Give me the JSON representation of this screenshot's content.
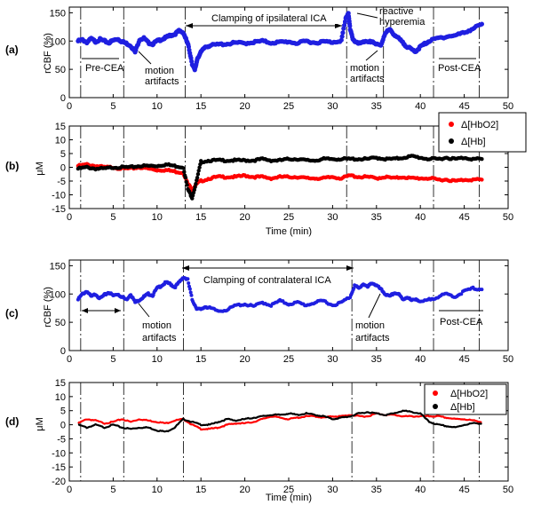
{
  "chart_data": [
    {
      "panel": "(a)",
      "type": "scatter",
      "ylabel": "rCBF (%)",
      "xlabel": "",
      "xlim": [
        0,
        50
      ],
      "ylim": [
        0,
        160
      ],
      "xticks": [
        "0",
        "5",
        "10",
        "15",
        "20",
        "25",
        "30",
        "35",
        "40",
        "45",
        "50"
      ],
      "yticks": [
        "0",
        "50",
        "100",
        "150"
      ],
      "markers": [
        1.3,
        6.2,
        13.2,
        31.6,
        35.8,
        41.5,
        46.7
      ],
      "annotations": [
        "Pre-CEA",
        "motion\nartifacts",
        "Clamping of ipsilateral ICA",
        "reactive\nhyperemia",
        "motion\nartifacts",
        "Post-CEA"
      ],
      "series": [
        {
          "color": "#1f1fe0",
          "x": [
            1,
            1.5,
            2,
            2.5,
            3,
            3.5,
            4,
            4.5,
            5,
            5.5,
            6,
            6.5,
            7,
            7.5,
            8,
            8.5,
            9,
            9.5,
            10,
            10.5,
            11,
            11.5,
            12,
            12.5,
            13,
            13.3,
            13.6,
            14,
            14.3,
            14.6,
            15,
            15.5,
            16,
            17,
            18,
            19,
            20,
            21,
            22,
            23,
            24,
            25,
            26,
            27,
            28,
            29,
            30,
            31,
            31.5,
            31.8,
            32,
            32.3,
            32.6,
            33,
            33.5,
            34,
            34.5,
            35,
            35.5,
            36,
            36.5,
            37,
            37.5,
            38,
            38.5,
            39,
            39.5,
            40,
            40.5,
            41,
            42,
            43,
            44,
            45,
            46,
            47
          ],
          "y": [
            100,
            102,
            98,
            104,
            99,
            103,
            100,
            97,
            101,
            104,
            99,
            96,
            92,
            80,
            103,
            105,
            97,
            95,
            100,
            103,
            106,
            110,
            112,
            118,
            115,
            103,
            90,
            60,
            48,
            70,
            80,
            90,
            92,
            94,
            95,
            97,
            96,
            98,
            100,
            97,
            98,
            99,
            96,
            100,
            97,
            99,
            98,
            101,
            140,
            150,
            120,
            105,
            98,
            95,
            100,
            97,
            100,
            94,
            92,
            115,
            120,
            112,
            105,
            97,
            90,
            85,
            82,
            90,
            95,
            100,
            105,
            108,
            110,
            115,
            122,
            130
          ]
        }
      ]
    },
    {
      "panel": "(b)",
      "type": "scatter",
      "ylabel": "μM",
      "xlabel": "Time (min)",
      "xlim": [
        0,
        50
      ],
      "ylim": [
        -15,
        15
      ],
      "xticks": [
        "0",
        "5",
        "10",
        "15",
        "20",
        "25",
        "30",
        "35",
        "40",
        "45",
        "50"
      ],
      "yticks": [
        "-15",
        "-10",
        "-5",
        "0",
        "5",
        "10",
        "15"
      ],
      "markers": [
        1.3,
        6.2,
        13.2,
        31.6,
        41.5,
        46.7
      ],
      "legend": [
        "Δ[HbO2]",
        "Δ[Hb]"
      ],
      "series": [
        {
          "name": "Δ[HbO2]",
          "color": "#ff0000",
          "x": [
            1,
            2,
            3,
            4,
            5,
            6,
            7,
            8,
            9,
            10,
            11,
            12,
            13,
            13.5,
            14,
            14.5,
            15,
            16,
            17,
            18,
            19,
            20,
            21,
            22,
            23,
            24,
            25,
            26,
            27,
            28,
            29,
            30,
            31,
            32,
            33,
            34,
            35,
            36,
            37,
            38,
            39,
            40,
            41,
            42,
            43,
            44,
            45,
            46,
            47
          ],
          "y": [
            0.5,
            1,
            0.5,
            0,
            0,
            -0.5,
            -0.5,
            0,
            -0.5,
            -1,
            -1,
            -1.5,
            -2,
            -6,
            -8,
            -6,
            -5,
            -4,
            -3.5,
            -3.5,
            -3.5,
            -3,
            -3.5,
            -3.5,
            -4,
            -3.5,
            -3.5,
            -3.5,
            -4,
            -4,
            -4,
            -3.5,
            -4,
            -3,
            -3.5,
            -3.5,
            -4,
            -3.5,
            -4,
            -3.5,
            -4,
            -4,
            -4,
            -4.5,
            -4.5,
            -5,
            -4.5,
            -4.5,
            -4.5
          ]
        },
        {
          "name": "Δ[Hb]",
          "color": "#000000",
          "x": [
            1,
            2,
            3,
            4,
            5,
            6,
            7,
            8,
            9,
            10,
            11,
            12,
            13,
            13.5,
            14,
            14.5,
            15,
            16,
            17,
            18,
            19,
            20,
            21,
            22,
            23,
            24,
            25,
            26,
            27,
            28,
            29,
            30,
            31,
            32,
            33,
            34,
            35,
            36,
            37,
            38,
            39,
            40,
            41,
            42,
            43,
            44,
            45,
            46,
            47
          ],
          "y": [
            -0.5,
            0,
            -0.5,
            -0.5,
            0,
            0,
            0,
            0.5,
            0.5,
            0.5,
            1,
            0.5,
            0,
            -8,
            -11,
            -5,
            2,
            2.5,
            2.5,
            2.5,
            2.5,
            2.5,
            2.5,
            3,
            2.5,
            2.5,
            3,
            3,
            2.5,
            2.5,
            3,
            3,
            3,
            3,
            3,
            3,
            3.5,
            3,
            3,
            3.5,
            4,
            3.5,
            3,
            3,
            3.5,
            3,
            3.5,
            3,
            3
          ]
        }
      ]
    },
    {
      "panel": "(c)",
      "type": "scatter",
      "ylabel": "rCBF (%)",
      "xlabel": "",
      "xlim": [
        0,
        50
      ],
      "ylim": [
        0,
        160
      ],
      "xticks": [
        "0",
        "5",
        "10",
        "15",
        "20",
        "25",
        "30",
        "35",
        "40",
        "45",
        "50"
      ],
      "yticks": [
        "0",
        "50",
        "100",
        "150"
      ],
      "markers": [
        1.3,
        6.2,
        13.0,
        32.2,
        41.5,
        46.7
      ],
      "annotations": [
        "Clamping of contralateral ICA",
        "motion\nartifacts",
        "motion\nartifacts",
        "Post-CEA"
      ],
      "series": [
        {
          "color": "#1f1fe0",
          "x": [
            1,
            1.5,
            2,
            2.5,
            3,
            3.5,
            4,
            4.5,
            5,
            5.5,
            6,
            6.5,
            7,
            7.5,
            8,
            8.5,
            9,
            9.5,
            10,
            10.5,
            11,
            11.5,
            12,
            12.5,
            13,
            13.5,
            14,
            14.5,
            15,
            15.5,
            16,
            17,
            18,
            19,
            20,
            21,
            22,
            23,
            24,
            25,
            26,
            27,
            28,
            29,
            30,
            31,
            32,
            32.5,
            33,
            33.5,
            34,
            34.5,
            35,
            35.5,
            36,
            36.5,
            37,
            37.5,
            38,
            38.5,
            39,
            39.5,
            40,
            41,
            42,
            43,
            44,
            45,
            46,
            47
          ],
          "y": [
            90,
            100,
            105,
            95,
            100,
            92,
            98,
            103,
            97,
            100,
            95,
            90,
            100,
            85,
            90,
            95,
            100,
            98,
            110,
            115,
            120,
            118,
            112,
            120,
            130,
            125,
            90,
            75,
            72,
            78,
            75,
            70,
            72,
            80,
            82,
            78,
            85,
            80,
            88,
            82,
            85,
            80,
            85,
            88,
            80,
            85,
            95,
            115,
            110,
            118,
            112,
            120,
            115,
            108,
            100,
            95,
            102,
            100,
            90,
            95,
            88,
            92,
            85,
            90,
            95,
            100,
            95,
            105,
            110,
            108
          ]
        }
      ]
    },
    {
      "panel": "(d)",
      "type": "line",
      "ylabel": "μM",
      "xlabel": "Time (min)",
      "xlim": [
        0,
        50
      ],
      "ylim": [
        -20,
        15
      ],
      "xticks": [
        "0",
        "5",
        "10",
        "15",
        "20",
        "25",
        "30",
        "35",
        "40",
        "45",
        "50"
      ],
      "yticks": [
        "-20",
        "-15",
        "-10",
        "-5",
        "0",
        "5",
        "10",
        "15"
      ],
      "markers": [
        1.3,
        6.2,
        13.0,
        32.2,
        41.5,
        46.7
      ],
      "legend": [
        "Δ[HbO2]",
        "Δ[Hb]"
      ],
      "series": [
        {
          "name": "Δ[HbO2]",
          "color": "#ff0000",
          "x": [
            1,
            2,
            3,
            4,
            5,
            6,
            7,
            8,
            9,
            10,
            11,
            12,
            13,
            14,
            15,
            16,
            17,
            18,
            19,
            20,
            21,
            22,
            23,
            24,
            25,
            26,
            27,
            28,
            29,
            30,
            31,
            32,
            33,
            34,
            35,
            36,
            37,
            38,
            39,
            40,
            41,
            42,
            43,
            44,
            45,
            46,
            47
          ],
          "y": [
            0.5,
            2,
            1.5,
            0.5,
            1,
            2,
            1,
            2,
            1.5,
            1,
            0.5,
            1.5,
            2,
            0,
            -1.5,
            -1.5,
            -1,
            0,
            0.5,
            0.5,
            1,
            2,
            3,
            2.5,
            2,
            2.5,
            3,
            3,
            2.5,
            3,
            3,
            3.5,
            3,
            3,
            4,
            3.5,
            3.5,
            3,
            3,
            3,
            3,
            3,
            2.5,
            2,
            2,
            1.5,
            1
          ]
        },
        {
          "name": "Δ[Hb]",
          "color": "#000000",
          "x": [
            1,
            2,
            3,
            4,
            5,
            6,
            7,
            8,
            9,
            10,
            11,
            12,
            13,
            14,
            15,
            16,
            17,
            18,
            19,
            20,
            21,
            22,
            23,
            24,
            25,
            26,
            27,
            28,
            29,
            30,
            31,
            32,
            33,
            34,
            35,
            36,
            37,
            38,
            39,
            40,
            41,
            42,
            43,
            44,
            45,
            46,
            47
          ],
          "y": [
            0,
            -1,
            0,
            -1,
            0,
            -1,
            -1.5,
            -1,
            -1,
            -2,
            -2.5,
            -1,
            2,
            1,
            0,
            0,
            1,
            2,
            1.5,
            2,
            2.5,
            3,
            3.5,
            3.5,
            4,
            3.5,
            4,
            3.5,
            3,
            2,
            2.5,
            3,
            4,
            4.5,
            4,
            3.5,
            4,
            5,
            4.5,
            4,
            1,
            0,
            -0.5,
            -1,
            0,
            0.5,
            0.5
          ]
        }
      ]
    }
  ]
}
